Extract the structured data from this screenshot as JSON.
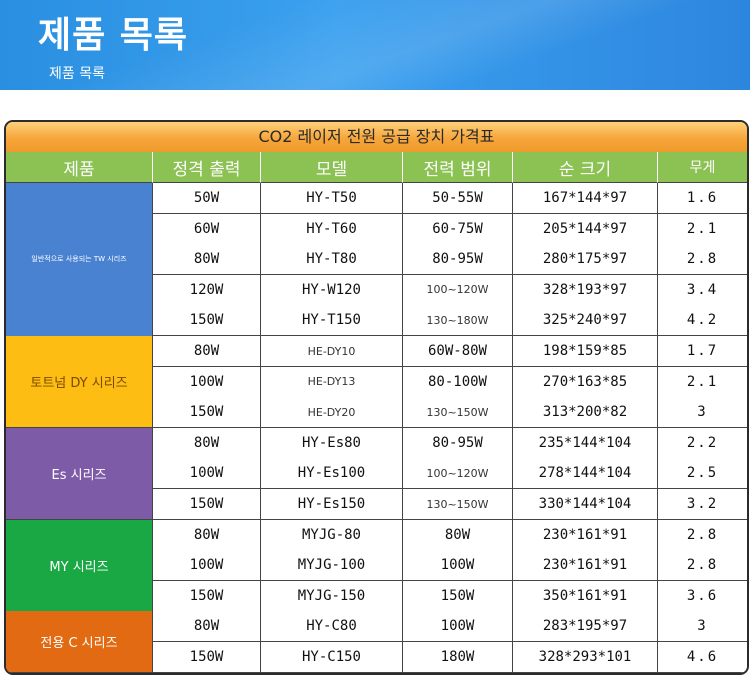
{
  "banner": {
    "title": "제품 목록",
    "subtitle": "제품 목록"
  },
  "table": {
    "caption": "CO2 레이저 전원 공급 장치 가격표",
    "headers": [
      "제품",
      "정격 출력",
      "모델",
      "전력 범위",
      "순 크기",
      "무게"
    ],
    "groups": [
      {
        "label": "일반적으로 사용되는 TW 시리즈",
        "color": "#4a82d2"
      },
      {
        "label": "토트넘 DY 시리즈",
        "color": "#fdbd12"
      },
      {
        "label": "Es 시리즈",
        "color": "#7d5ba6"
      },
      {
        "label": "MY 시리즈",
        "color": "#19a843"
      },
      {
        "label": "전용 C 시리즈",
        "color": "#e26a12"
      }
    ],
    "rows": [
      [
        "50W",
        "HY-T50",
        "50-55W",
        "167*144*97",
        "1.6"
      ],
      [
        "60W",
        "HY-T60",
        "60-75W",
        "205*144*97",
        "2.1"
      ],
      [
        "80W",
        "HY-T80",
        "80-95W",
        "280*175*97",
        "2.8"
      ],
      [
        "120W",
        "HY-W120",
        "100~120W",
        "328*193*97",
        "3.4"
      ],
      [
        "150W",
        "HY-T150",
        "130~180W",
        "325*240*97",
        "4.2"
      ],
      [
        "80W",
        "HE-DY10",
        "60W-80W",
        "198*159*85",
        "1.7"
      ],
      [
        "100W",
        "HE-DY13",
        "80-100W",
        "270*163*85",
        "2.1"
      ],
      [
        "150W",
        "HE-DY20",
        "130~150W",
        "313*200*82",
        "3"
      ],
      [
        "80W",
        "HY-Es80",
        "80-95W",
        "235*144*104",
        "2.2"
      ],
      [
        "100W",
        "HY-Es100",
        "100~120W",
        "278*144*104",
        "2.5"
      ],
      [
        "150W",
        "HY-Es150",
        "130~150W",
        "330*144*104",
        "3.2"
      ],
      [
        "80W",
        "MYJG-80",
        "80W",
        "230*161*91",
        "2.8"
      ],
      [
        "100W",
        "MYJG-100",
        "100W",
        "230*161*91",
        "2.8"
      ],
      [
        "150W",
        "MYJG-150",
        "150W",
        "350*161*91",
        "3.6"
      ],
      [
        "80W",
        "HY-C80",
        "100W",
        "283*195*97",
        "3"
      ],
      [
        "150W",
        "HY-C150",
        "180W",
        "328*293*101",
        "4.6"
      ]
    ]
  }
}
